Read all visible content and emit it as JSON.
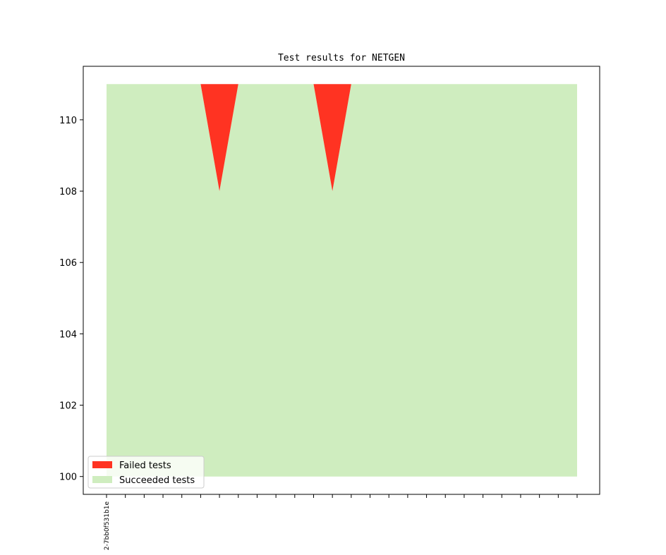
{
  "chart_data": {
    "type": "area",
    "title": "Test results for NETGEN",
    "xlabel": "",
    "ylabel": "",
    "x_tick_labels": [
      "2-7bb0f531b1e"
    ],
    "x_tick_count": 26,
    "ylim": [
      99.5,
      111.5
    ],
    "yticks": [
      100,
      102,
      104,
      106,
      108,
      110
    ],
    "legend_position": "lower-left",
    "grid": false,
    "series": [
      {
        "name": "Failed tests",
        "color": "#ff3322",
        "values": [
          0,
          0,
          0,
          0,
          0,
          0,
          3,
          0,
          0,
          0,
          0,
          0,
          3,
          0,
          0,
          0,
          0,
          0,
          0,
          0,
          0,
          0,
          0,
          0,
          0,
          0
        ]
      },
      {
        "name": "Succeeded tests",
        "color": "#cfedbf",
        "values": [
          111,
          111,
          111,
          111,
          111,
          111,
          108,
          111,
          111,
          111,
          111,
          111,
          108,
          111,
          111,
          111,
          111,
          111,
          111,
          111,
          111,
          111,
          111,
          111,
          111,
          111
        ]
      }
    ],
    "baseline": 100
  }
}
